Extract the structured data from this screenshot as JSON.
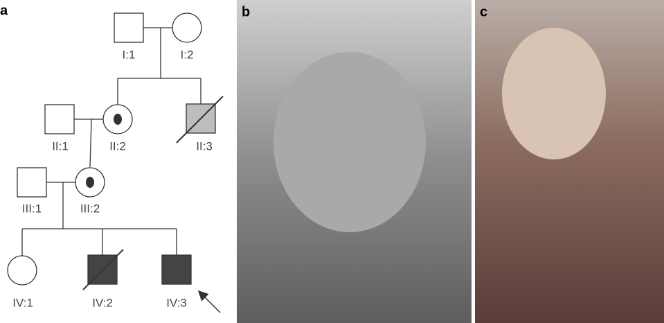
{
  "panel_labels": [
    "a",
    "b",
    "c"
  ],
  "nodes": [
    {
      "label": "I:1"
    },
    {
      "label": "I:2"
    },
    {
      "label": "II:1"
    },
    {
      "label": "II:2"
    },
    {
      "label": "II:3"
    },
    {
      "label": "III:1"
    },
    {
      "label": "III:2"
    },
    {
      "label": "IV:1"
    },
    {
      "label": "IV:2"
    },
    {
      "label": "IV:3"
    }
  ]
}
